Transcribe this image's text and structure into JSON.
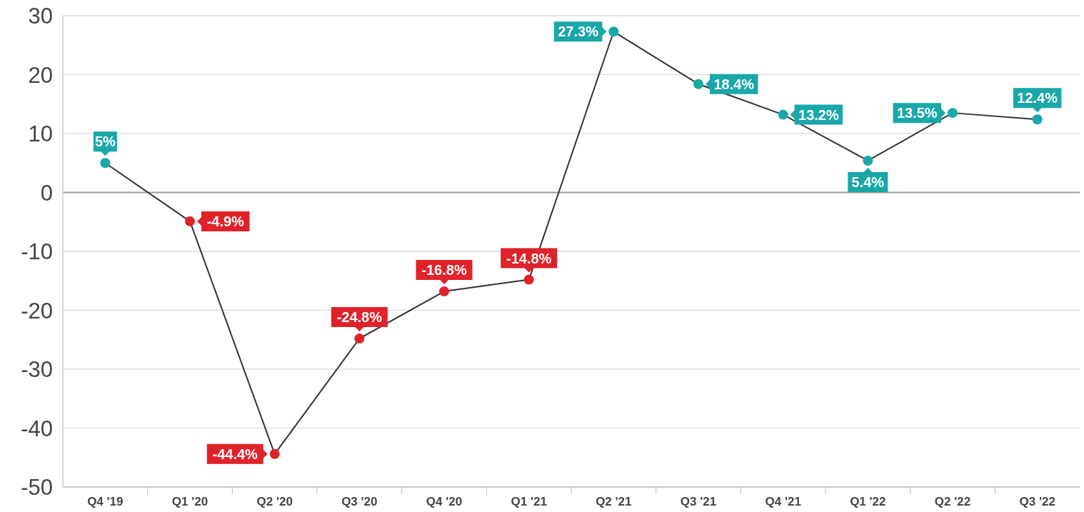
{
  "chart_data": {
    "type": "line",
    "categories": [
      "Q4 '19",
      "Q1 '20",
      "Q2 '20",
      "Q3 '20",
      "Q4 '20",
      "Q1 '21",
      "Q2 '21",
      "Q3 '21",
      "Q4 '21",
      "Q1 '22",
      "Q2 '22",
      "Q3 '22"
    ],
    "series": [
      {
        "color": "#333333",
        "values": [
          5,
          -4.9,
          -44.4,
          -24.8,
          -16.8,
          -14.8,
          27.3,
          18.4,
          13.2,
          5.4,
          13.5,
          12.4
        ],
        "colors": [
          "#1aa7a8",
          "#e0222a",
          "#e0222a",
          "#e0222a",
          "#e0222a",
          "#e0222a",
          "#1aa7a8",
          "#1aa7a8",
          "#1aa7a8",
          "#1aa7a8",
          "#1aa7a8",
          "#1aa7a8"
        ],
        "value_labels": [
          "5%",
          "-4.9%",
          "-44.4%",
          "-24.8%",
          "-16.8%",
          "-14.8%",
          "27.3%",
          "18.4%",
          "13.2%",
          "5.4%",
          "13.5%",
          "12.4%"
        ]
      }
    ],
    "ylim": [
      -50,
      30
    ],
    "yticks": [
      -50,
      -40,
      -30,
      -20,
      -10,
      0,
      10,
      20,
      30
    ],
    "grid": "y",
    "marker": "circle"
  }
}
